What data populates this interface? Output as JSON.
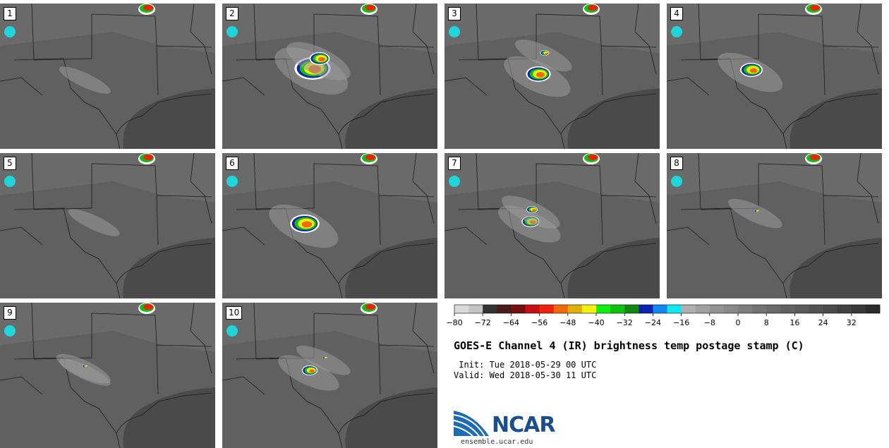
{
  "panels": [
    {
      "label": "1"
    },
    {
      "label": "2"
    },
    {
      "label": "3"
    },
    {
      "label": "4"
    },
    {
      "label": "5"
    },
    {
      "label": "6"
    },
    {
      "label": "7"
    },
    {
      "label": "8"
    },
    {
      "label": "9"
    },
    {
      "label": "10"
    }
  ],
  "colorbar": {
    "colors": [
      "#d9d9d9",
      "#c4c4c4",
      "#333333",
      "#4a1a1a",
      "#751010",
      "#c41010",
      "#f0200a",
      "#f06a0a",
      "#e0b008",
      "#f0f010",
      "#10f010",
      "#10c010",
      "#108810",
      "#1020b0",
      "#1088f0",
      "#10e8f0",
      "#b0b0b0",
      "#a0a0a0",
      "#939393",
      "#888888",
      "#7d7d7d",
      "#737373",
      "#6a6a6a",
      "#626262",
      "#5a5a5a",
      "#525252",
      "#494949",
      "#404040",
      "#383838",
      "#2b2b2b"
    ],
    "ticks": [
      "−80",
      "−72",
      "−64",
      "−56",
      "−48",
      "−40",
      "−32",
      "−24",
      "−16",
      "−8",
      "0",
      "8",
      "16",
      "24",
      "32"
    ]
  },
  "title": "GOES-E Channel 4 (IR) brightness temp postage stamp (C)",
  "init": " Init: Tue 2018-05-29 00 UTC",
  "valid": "Valid: Wed 2018-05-30 11 UTC",
  "logo": {
    "text": "NCAR",
    "url": "ensemble.ucar.edu"
  }
}
